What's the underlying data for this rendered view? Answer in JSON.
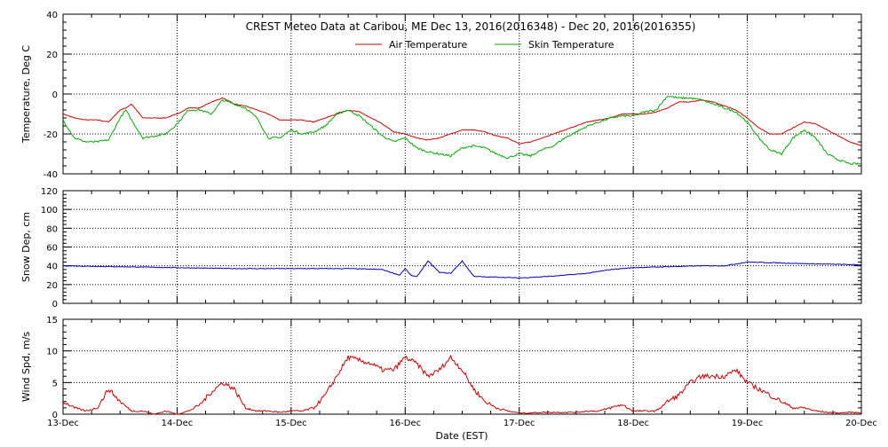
{
  "chart_data": {
    "type": "line",
    "title": "CREST Meteo Data at Caribou, ME   Dec 13, 2016(2016348) - Dec 20, 2016(2016355)",
    "xlabel": "Date (EST)",
    "x_ticks": [
      "13-Dec",
      "14-Dec",
      "15-Dec",
      "16-Dec",
      "17-Dec",
      "18-Dec",
      "19-Dec",
      "20-Dec"
    ],
    "xlim_days": [
      0,
      7
    ],
    "grid": true,
    "legend_position": "top-center",
    "panels": [
      {
        "ylabel": "Temperature, Deg C",
        "ylim": [
          -40,
          40
        ],
        "y_ticks": [
          -40,
          -20,
          0,
          20,
          40
        ],
        "series": [
          {
            "name": "Air Temperature",
            "color": "#cc0000",
            "x": [
              0,
              0.1,
              0.2,
              0.3,
              0.4,
              0.5,
              0.55,
              0.6,
              0.7,
              0.8,
              0.9,
              1.0,
              1.1,
              1.2,
              1.3,
              1.4,
              1.5,
              1.6,
              1.7,
              1.8,
              1.9,
              2.0,
              2.1,
              2.2,
              2.3,
              2.4,
              2.5,
              2.6,
              2.7,
              2.8,
              2.9,
              3.0,
              3.1,
              3.2,
              3.3,
              3.4,
              3.5,
              3.6,
              3.7,
              3.8,
              3.9,
              4.0,
              4.1,
              4.2,
              4.3,
              4.4,
              4.5,
              4.6,
              4.7,
              4.8,
              4.9,
              5.0,
              5.1,
              5.2,
              5.3,
              5.4,
              5.5,
              5.6,
              5.7,
              5.8,
              5.9,
              6.0,
              6.1,
              6.2,
              6.3,
              6.4,
              6.5,
              6.6,
              6.7,
              6.8,
              6.9,
              7.0
            ],
            "values": [
              -10,
              -12,
              -13,
              -13,
              -14,
              -8,
              -7,
              -5,
              -12,
              -12,
              -12,
              -10,
              -7,
              -7,
              -4,
              -2,
              -5,
              -6,
              -8,
              -10,
              -13,
              -13,
              -13,
              -14,
              -12,
              -10,
              -8,
              -9,
              -12,
              -15,
              -19,
              -20,
              -22,
              -23,
              -22,
              -20,
              -18,
              -18,
              -19,
              -21,
              -22,
              -25,
              -24,
              -22,
              -20,
              -18,
              -16,
              -14,
              -13,
              -12,
              -10,
              -10,
              -10,
              -9,
              -7,
              -4,
              -4,
              -3,
              -4,
              -6,
              -8,
              -12,
              -17,
              -20,
              -20,
              -17,
              -14,
              -15,
              -18,
              -21,
              -24,
              -26
            ]
          },
          {
            "name": "Skin Temperature",
            "color": "#00aa00",
            "x": [
              0,
              0.1,
              0.2,
              0.3,
              0.4,
              0.5,
              0.55,
              0.6,
              0.7,
              0.8,
              0.9,
              1.0,
              1.1,
              1.2,
              1.3,
              1.4,
              1.5,
              1.6,
              1.7,
              1.8,
              1.9,
              2.0,
              2.1,
              2.2,
              2.3,
              2.4,
              2.5,
              2.6,
              2.7,
              2.8,
              2.9,
              3.0,
              3.1,
              3.2,
              3.3,
              3.4,
              3.5,
              3.6,
              3.7,
              3.8,
              3.9,
              4.0,
              4.1,
              4.2,
              4.3,
              4.4,
              4.5,
              4.6,
              4.7,
              4.8,
              4.9,
              5.0,
              5.1,
              5.2,
              5.3,
              5.4,
              5.5,
              5.6,
              5.7,
              5.8,
              5.9,
              6.0,
              6.1,
              6.2,
              6.3,
              6.4,
              6.5,
              6.6,
              6.7,
              6.8,
              6.9,
              7.0
            ],
            "values": [
              -13,
              -22,
              -24,
              -24,
              -23,
              -12,
              -8,
              -13,
              -22,
              -21,
              -20,
              -15,
              -8,
              -8,
              -10,
              -3,
              -5,
              -7,
              -12,
              -22,
              -22,
              -18,
              -20,
              -19,
              -16,
              -10,
              -8,
              -11,
              -16,
              -21,
              -24,
              -22,
              -27,
              -29,
              -30,
              -31,
              -27,
              -26,
              -27,
              -30,
              -32,
              -30,
              -31,
              -28,
              -26,
              -22,
              -19,
              -16,
              -14,
              -12,
              -11,
              -11,
              -9,
              -8,
              -1,
              -2,
              -2,
              -3,
              -5,
              -7,
              -9,
              -14,
              -22,
              -28,
              -30,
              -22,
              -18,
              -22,
              -30,
              -33,
              -35,
              -35
            ]
          }
        ]
      },
      {
        "ylabel": "Snow Dep, cm",
        "ylim": [
          0,
          120
        ],
        "y_ticks": [
          0,
          20,
          40,
          60,
          80,
          100,
          120
        ],
        "series": [
          {
            "name": "",
            "color": "#0000bb",
            "x": [
              0,
              0.5,
              1.0,
              1.5,
              2.0,
              2.5,
              2.8,
              2.95,
              3.0,
              3.05,
              3.1,
              3.2,
              3.3,
              3.4,
              3.5,
              3.6,
              3.7,
              3.8,
              4.0,
              4.3,
              4.6,
              4.8,
              5.0,
              5.3,
              5.6,
              5.8,
              6.0,
              6.3,
              6.6,
              7.0
            ],
            "values": [
              40,
              39,
              38,
              37,
              37,
              37,
              36,
              30,
              37,
              30,
              28,
              45,
              33,
              32,
              45,
              29,
              28,
              28,
              27,
              29,
              32,
              36,
              38,
              39,
              40,
              40,
              44,
              43,
              42,
              41
            ]
          }
        ]
      },
      {
        "ylabel": "Wind Spd, m/s",
        "ylim": [
          0,
          15
        ],
        "y_ticks": [
          0,
          5,
          10,
          15
        ],
        "series": [
          {
            "name": "",
            "color": "#cc0000",
            "x": [
              0,
              0.1,
              0.2,
              0.3,
              0.4,
              0.5,
              0.6,
              0.7,
              0.8,
              0.9,
              1.0,
              1.1,
              1.2,
              1.3,
              1.4,
              1.5,
              1.6,
              1.7,
              1.8,
              1.9,
              2.0,
              2.1,
              2.2,
              2.3,
              2.4,
              2.5,
              2.6,
              2.7,
              2.8,
              2.9,
              3.0,
              3.1,
              3.2,
              3.3,
              3.4,
              3.5,
              3.6,
              3.7,
              3.8,
              3.9,
              4.0,
              4.1,
              4.2,
              4.3,
              4.4,
              4.5,
              4.6,
              4.7,
              4.8,
              4.9,
              5.0,
              5.1,
              5.2,
              5.3,
              5.4,
              5.5,
              5.6,
              5.7,
              5.8,
              5.9,
              6.0,
              6.1,
              6.2,
              6.3,
              6.4,
              6.5,
              6.6,
              6.7,
              6.8,
              6.9,
              7.0
            ],
            "values": [
              2,
              1,
              0.5,
              1,
              4,
              2,
              0.5,
              0.5,
              0,
              0.5,
              0,
              0.5,
              1.5,
              3.5,
              5,
              4,
              1,
              0.5,
              0.5,
              0.3,
              0.5,
              0.5,
              1,
              3,
              6,
              9,
              8.5,
              8,
              7,
              7,
              9,
              8,
              6,
              7,
              9,
              7,
              4,
              2,
              1,
              0.5,
              0.2,
              0.2,
              0.3,
              0.3,
              0.3,
              0.3,
              0.5,
              0.5,
              1,
              1.5,
              0.5,
              0.5,
              0.5,
              2,
              3,
              5,
              6,
              6,
              6,
              7,
              5,
              4,
              3,
              2,
              1,
              1,
              0.5,
              0.3,
              0.2,
              0.3,
              0.2
            ]
          }
        ]
      }
    ]
  }
}
